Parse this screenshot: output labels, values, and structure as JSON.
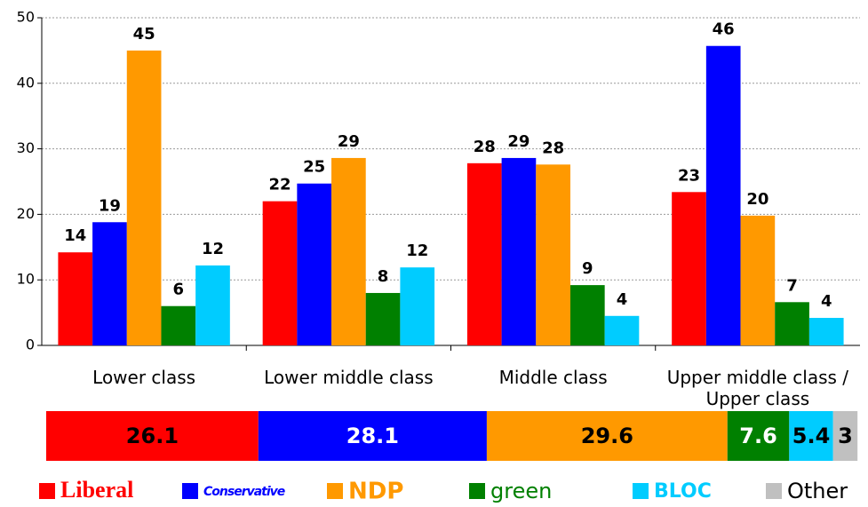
{
  "chart_data": [
    {
      "type": "grouped_bar",
      "categories": [
        "Lower class",
        "Lower middle class",
        "Middle class",
        "Upper middle class / Upper class"
      ],
      "series": [
        {
          "color": "#ff0000",
          "values": [
            14.2,
            22.0,
            27.8,
            23.4
          ],
          "value_labels": [
            "14",
            "22",
            "28",
            "23"
          ]
        },
        {
          "color": "#0000ff",
          "values": [
            18.8,
            24.7,
            28.6,
            45.7
          ],
          "value_labels": [
            "19",
            "25",
            "29",
            "46"
          ]
        },
        {
          "color": "#ff9900",
          "values": [
            45.0,
            28.6,
            27.6,
            19.8
          ],
          "value_labels": [
            "45",
            "29",
            "28",
            "20"
          ]
        },
        {
          "color": "#008000",
          "values": [
            6.0,
            8.0,
            9.2,
            6.6
          ],
          "value_labels": [
            "6",
            "8",
            "9",
            "7"
          ]
        },
        {
          "color": "#00ccff",
          "values": [
            12.2,
            11.9,
            4.5,
            4.2
          ],
          "value_labels": [
            "12",
            "12",
            "4",
            "4"
          ]
        }
      ],
      "ylim": [
        0,
        50
      ],
      "yticks": [
        0,
        10,
        20,
        30,
        40,
        50
      ],
      "grid": true
    },
    {
      "type": "stacked_hbar",
      "series": [
        {
          "name": "Liberal",
          "color": "#ff0000",
          "values": [
            26.1
          ]
        },
        {
          "name": "Conservative",
          "color": "#0000ff",
          "values": [
            28.1
          ]
        },
        {
          "name": "NDP",
          "color": "#ff9900",
          "values": [
            29.6
          ]
        },
        {
          "name": "green",
          "color": "#008000",
          "values": [
            7.6
          ]
        },
        {
          "name": "BLOC",
          "color": "#00ccff",
          "values": [
            5.4
          ]
        },
        {
          "name": "Other",
          "color": "#c0c0c0",
          "values": [
            3
          ]
        }
      ],
      "xlim": [
        0,
        100
      ]
    }
  ]
}
